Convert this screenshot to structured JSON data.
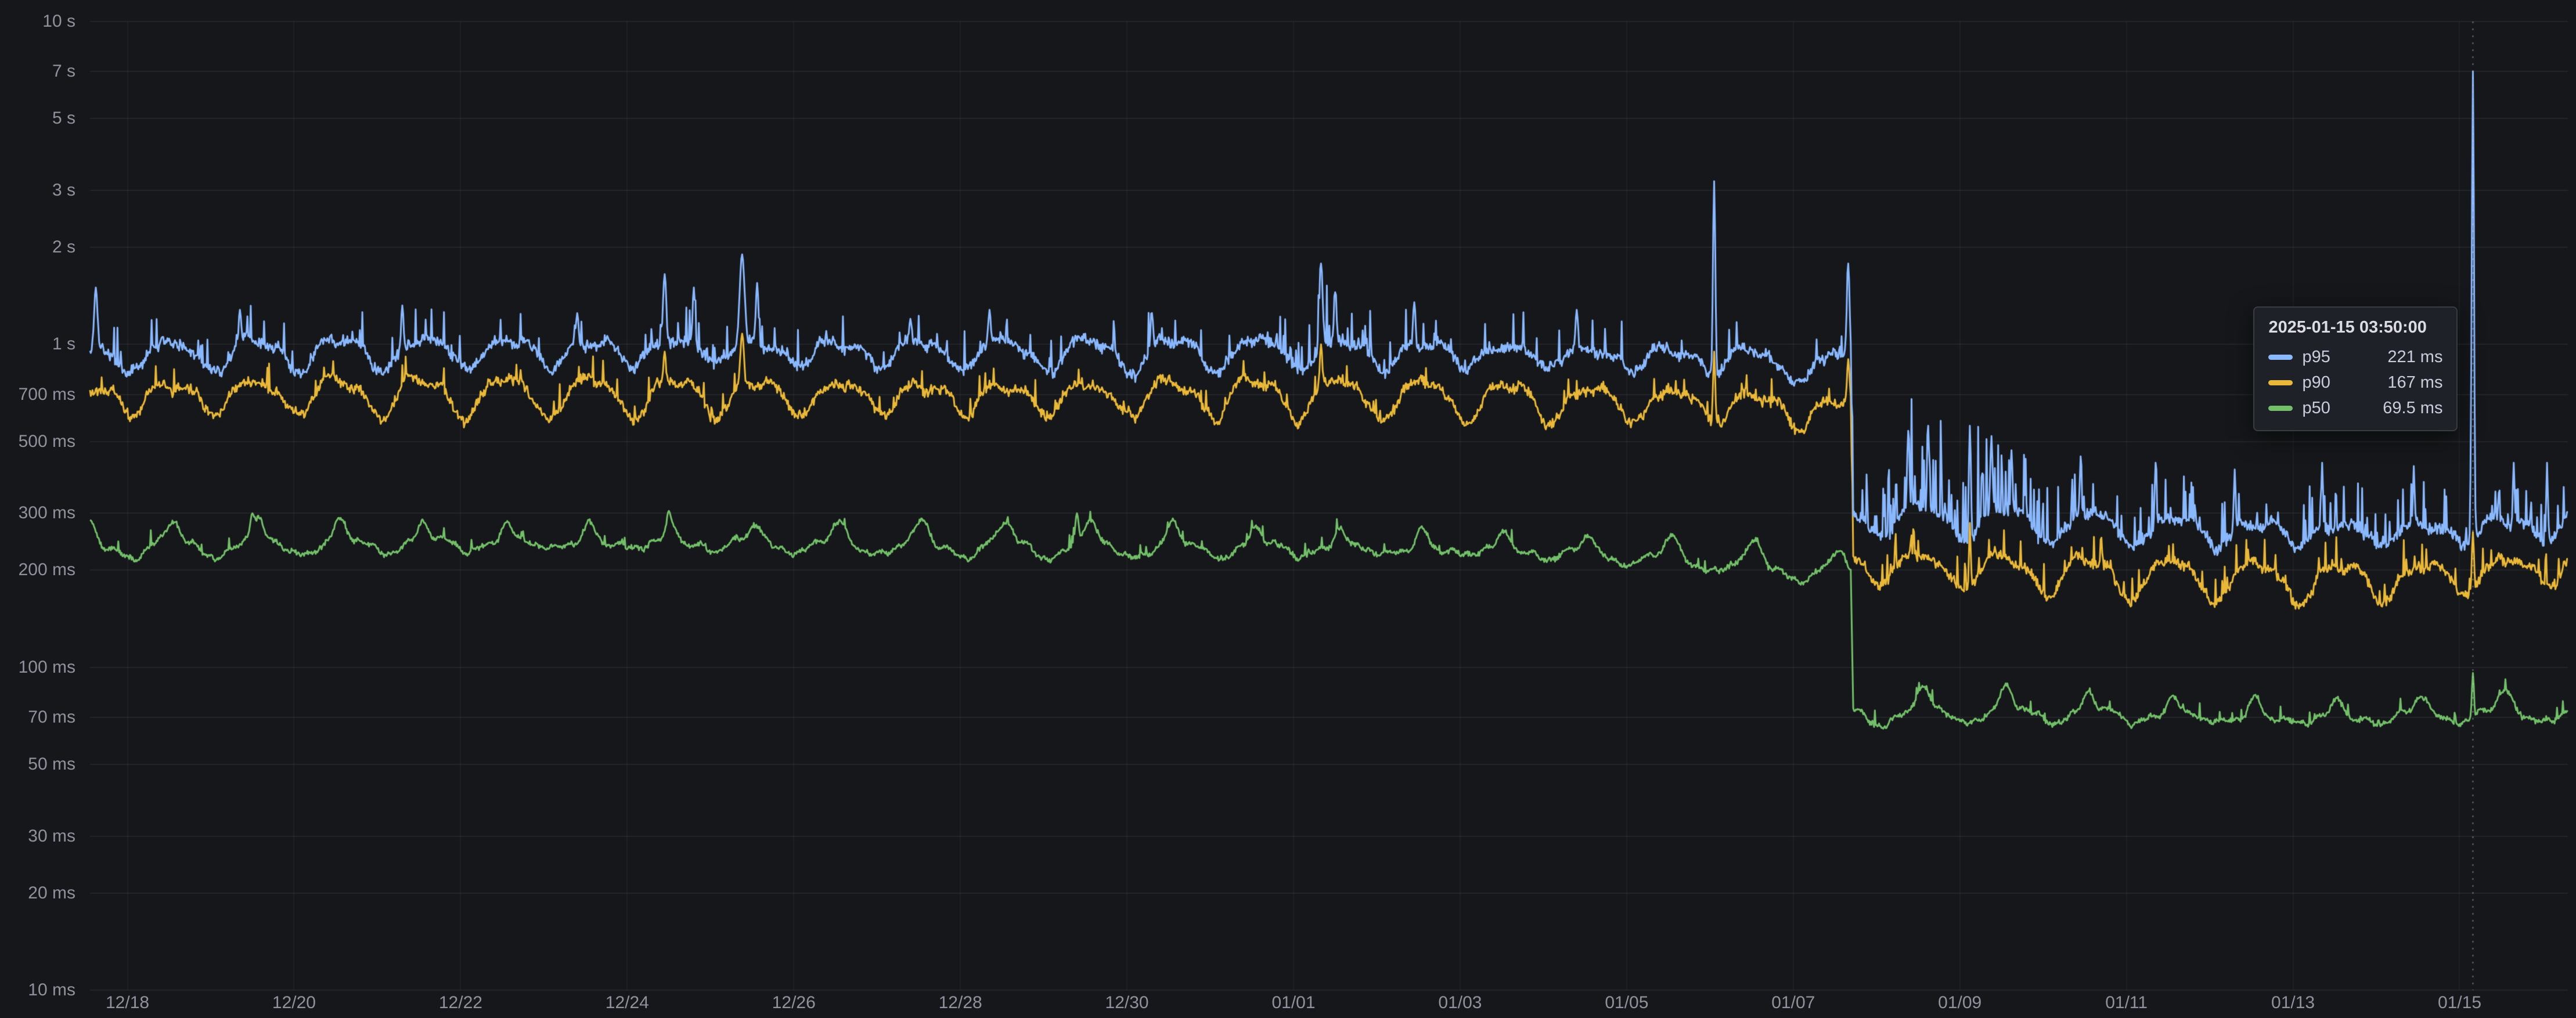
{
  "colors": {
    "background": "#15171a",
    "grid": "rgba(204,204,220,0.08)",
    "grid_vertical": "rgba(204,204,220,0.05)",
    "axis_text": "rgba(204,204,220,0.68)",
    "crosshair": "rgba(204,204,220,0.45)",
    "tooltip_bg": "#1e2127",
    "tooltip_border": "rgba(204,204,220,0.16)",
    "tooltip_text": "#ccccdc"
  },
  "chart_data": {
    "type": "line",
    "title": "",
    "x_axis": {
      "note": "day offsets measured from 2024-12-17 00:00",
      "domain_days": [
        0.55,
        30.3
      ],
      "ticks": [
        {
          "label": "12/18",
          "day": 1
        },
        {
          "label": "12/20",
          "day": 3
        },
        {
          "label": "12/22",
          "day": 5
        },
        {
          "label": "12/24",
          "day": 7
        },
        {
          "label": "12/26",
          "day": 9
        },
        {
          "label": "12/28",
          "day": 11
        },
        {
          "label": "12/30",
          "day": 13
        },
        {
          "label": "01/01",
          "day": 15
        },
        {
          "label": "01/03",
          "day": 17
        },
        {
          "label": "01/05",
          "day": 19
        },
        {
          "label": "01/07",
          "day": 21
        },
        {
          "label": "01/09",
          "day": 23
        },
        {
          "label": "01/11",
          "day": 25
        },
        {
          "label": "01/13",
          "day": 27
        },
        {
          "label": "01/15",
          "day": 29
        }
      ]
    },
    "y_axis": {
      "scale": "log",
      "unit": "ms",
      "domain_ms": [
        10,
        10000
      ],
      "ticks": [
        {
          "label": "10 s",
          "value_ms": 10000
        },
        {
          "label": "7 s",
          "value_ms": 7000
        },
        {
          "label": "5 s",
          "value_ms": 5000
        },
        {
          "label": "3 s",
          "value_ms": 3000
        },
        {
          "label": "2 s",
          "value_ms": 2000
        },
        {
          "label": "1 s",
          "value_ms": 1000
        },
        {
          "label": "700 ms",
          "value_ms": 700
        },
        {
          "label": "500 ms",
          "value_ms": 500
        },
        {
          "label": "300 ms",
          "value_ms": 300
        },
        {
          "label": "200 ms",
          "value_ms": 200
        },
        {
          "label": "100 ms",
          "value_ms": 100
        },
        {
          "label": "70 ms",
          "value_ms": 70
        },
        {
          "label": "50 ms",
          "value_ms": 50
        },
        {
          "label": "30 ms",
          "value_ms": 30
        },
        {
          "label": "20 ms",
          "value_ms": 20
        },
        {
          "label": "10 ms",
          "value_ms": 10
        }
      ]
    },
    "series": [
      {
        "name": "p95",
        "color": "#8AB8FF",
        "keypoints": [
          [
            0.55,
            920
          ],
          [
            3,
            950
          ],
          [
            8,
            960
          ],
          [
            12,
            940
          ],
          [
            15,
            950
          ],
          [
            18,
            930
          ],
          [
            20.5,
            900
          ],
          [
            21.4,
            840
          ],
          [
            21.69,
            880
          ],
          [
            21.72,
            292
          ],
          [
            23,
            286
          ],
          [
            25,
            272
          ],
          [
            27,
            262
          ],
          [
            28.5,
            262
          ],
          [
            30.3,
            278
          ]
        ],
        "wave": {
          "amplitude": 0.12,
          "phase": 0.3,
          "peak_boost": 0
        },
        "jitter": 0.035,
        "hairs": [
          {
            "range": [
              0.55,
              21.7
            ],
            "prob": 0.05,
            "gain": 0.3
          },
          {
            "range": [
              7.2,
              8.8
            ],
            "prob": 0.1,
            "gain": 0.3
          },
          {
            "range": [
              14.8,
              16.0
            ],
            "prob": 0.15,
            "gain": 0.35
          },
          {
            "range": [
              21.7,
              30.3
            ],
            "prob": 0.16,
            "gain": 0.4
          },
          {
            "range": [
              22.0,
              24.2
            ],
            "prob": 0.22,
            "gain": 0.6
          }
        ],
        "spikes": [
          [
            0.62,
            1500,
            0.02
          ],
          [
            2.35,
            1280,
            0.015
          ],
          [
            4.3,
            1320,
            0.015
          ],
          [
            6.4,
            1250,
            0.015
          ],
          [
            7.45,
            1650,
            0.02
          ],
          [
            7.8,
            1500,
            0.015
          ],
          [
            8.38,
            1900,
            0.028
          ],
          [
            8.56,
            1550,
            0.015
          ],
          [
            10.4,
            1200,
            0.015
          ],
          [
            11.35,
            1280,
            0.015
          ],
          [
            13.3,
            1250,
            0.015
          ],
          [
            15.33,
            1780,
            0.02
          ],
          [
            15.5,
            1450,
            0.015
          ],
          [
            16.45,
            1350,
            0.015
          ],
          [
            18.4,
            1280,
            0.015
          ],
          [
            20.05,
            3200,
            0.014
          ],
          [
            21.66,
            1780,
            0.016
          ],
          [
            22.38,
            540,
            0.012
          ],
          [
            22.62,
            560,
            0.012
          ],
          [
            23.12,
            560,
            0.012
          ],
          [
            23.38,
            520,
            0.012
          ],
          [
            23.62,
            470,
            0.01
          ],
          [
            24.45,
            450,
            0.01
          ],
          [
            25.35,
            430,
            0.01
          ],
          [
            26.3,
            410,
            0.01
          ],
          [
            27.35,
            430,
            0.01
          ],
          [
            28.45,
            420,
            0.01
          ],
          [
            29.16,
            7000,
            0.013
          ],
          [
            29.65,
            430,
            0.01
          ],
          [
            30.05,
            430,
            0.01
          ]
        ]
      },
      {
        "name": "p90",
        "color": "#EAB839",
        "keypoints": [
          [
            0.55,
            690
          ],
          [
            3,
            705
          ],
          [
            8,
            700
          ],
          [
            12,
            690
          ],
          [
            15,
            700
          ],
          [
            18,
            675
          ],
          [
            20.5,
            650
          ],
          [
            21.4,
            610
          ],
          [
            21.69,
            640
          ],
          [
            21.72,
            208
          ],
          [
            23,
            202
          ],
          [
            25,
            193
          ],
          [
            27,
            186
          ],
          [
            28.5,
            188
          ],
          [
            30.3,
            208
          ]
        ],
        "wave": {
          "amplitude": 0.155,
          "phase": 0.3,
          "peak_boost": 0
        },
        "jitter": 0.032,
        "hairs": [
          {
            "range": [
              0.55,
              21.7
            ],
            "prob": 0.04,
            "gain": 0.18
          },
          {
            "range": [
              21.7,
              30.3
            ],
            "prob": 0.1,
            "gain": 0.22
          }
        ],
        "spikes": [
          [
            7.45,
            950,
            0.015
          ],
          [
            8.38,
            1080,
            0.022
          ],
          [
            15.33,
            1000,
            0.015
          ],
          [
            20.05,
            950,
            0.012
          ],
          [
            21.66,
            900,
            0.014
          ],
          [
            23.12,
            280,
            0.01
          ],
          [
            29.16,
            262,
            0.012
          ]
        ]
      },
      {
        "name": "p50",
        "color": "#73BF69",
        "keypoints": [
          [
            0.55,
            233
          ],
          [
            3,
            238
          ],
          [
            6,
            240
          ],
          [
            9,
            238
          ],
          [
            12,
            234
          ],
          [
            15,
            231
          ],
          [
            17.5,
            228
          ],
          [
            19.5,
            215
          ],
          [
            21.0,
            200
          ],
          [
            21.69,
            189
          ],
          [
            21.72,
            71
          ],
          [
            23.5,
            72
          ],
          [
            25.5,
            70
          ],
          [
            27.5,
            68.5
          ],
          [
            29,
            71
          ],
          [
            30.3,
            72
          ]
        ],
        "wave": {
          "amplitude": 0.05,
          "phase": 0.3,
          "peak_boost": 0.16
        },
        "jitter": 0.016,
        "hairs": [
          {
            "range": [
              0.55,
              21.7
            ],
            "prob": 0.03,
            "gain": 0.1
          },
          {
            "range": [
              21.7,
              30.3
            ],
            "prob": 0.04,
            "gain": 0.1
          }
        ],
        "spikes": [
          [
            2.5,
            300,
            0.02
          ],
          [
            7.5,
            305,
            0.02
          ],
          [
            12.4,
            300,
            0.02
          ],
          [
            29.16,
            96,
            0.012
          ]
        ]
      }
    ],
    "crosshair": {
      "day": 29.16,
      "style": "dashed"
    },
    "tooltip": {
      "timestamp": "2025-01-15 03:50:00",
      "rows": [
        {
          "series": "p95",
          "value": "221 ms"
        },
        {
          "series": "p90",
          "value": "167 ms"
        },
        {
          "series": "p50",
          "value": "69.5 ms"
        }
      ]
    }
  }
}
